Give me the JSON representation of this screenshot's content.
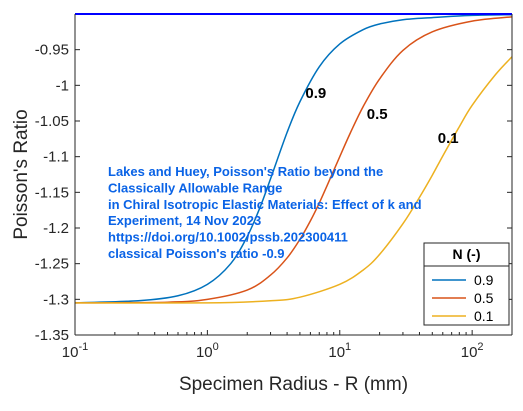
{
  "chart_data": {
    "type": "line",
    "xlabel": "Specimen Radius - R (mm)",
    "ylabel": "Poisson's Ratio",
    "xscale": "log",
    "xlim": [
      0.1,
      200
    ],
    "ylim": [
      -1.35,
      -0.9
    ],
    "grid": false,
    "x_ticks": [
      {
        "value": 0.1,
        "base": "10",
        "exp": "-1"
      },
      {
        "value": 1,
        "base": "10",
        "exp": "0"
      },
      {
        "value": 10,
        "base": "10",
        "exp": "1"
      },
      {
        "value": 100,
        "base": "10",
        "exp": "2"
      }
    ],
    "y_ticks": [
      {
        "value": -0.95,
        "label": "-0.95"
      },
      {
        "value": -1.0,
        "label": "-1"
      },
      {
        "value": -1.05,
        "label": "-1.05"
      },
      {
        "value": -1.1,
        "label": "-1.1"
      },
      {
        "value": -1.15,
        "label": "-1.15"
      },
      {
        "value": -1.2,
        "label": "-1.2"
      },
      {
        "value": -1.25,
        "label": "-1.25"
      },
      {
        "value": -1.3,
        "label": "-1.3"
      },
      {
        "value": -1.35,
        "label": "-1.35"
      }
    ],
    "reference_line": {
      "value": -0.9,
      "color": "#0000ff"
    },
    "legend": {
      "title": "N (-)",
      "placement": "bottom-right"
    },
    "series": [
      {
        "name": "0.9",
        "color": "#0072bd",
        "label": "0.9",
        "label_at": [
          5.5,
          -1.018
        ],
        "x": [
          0.1,
          0.3,
          0.6,
          1.0,
          1.5,
          2.0,
          2.5,
          3.0,
          4.0,
          5.0,
          7.0,
          10,
          15,
          20,
          30,
          50,
          100,
          200
        ],
        "y": [
          -1.305,
          -1.302,
          -1.295,
          -1.279,
          -1.25,
          -1.212,
          -1.171,
          -1.131,
          -1.066,
          -1.023,
          -0.974,
          -0.942,
          -0.922,
          -0.914,
          -0.908,
          -0.905,
          -0.902,
          -0.901
        ]
      },
      {
        "name": "0.5",
        "color": "#d95319",
        "label": "0.5",
        "label_at": [
          16,
          -1.047
        ],
        "x": [
          0.1,
          0.5,
          1.0,
          2.0,
          3.0,
          4.0,
          5.0,
          6.0,
          7.0,
          8.0,
          10,
          12,
          15,
          20,
          30,
          50,
          100,
          200
        ],
        "y": [
          -1.305,
          -1.304,
          -1.3,
          -1.287,
          -1.266,
          -1.242,
          -1.216,
          -1.19,
          -1.165,
          -1.141,
          -1.1,
          -1.067,
          -1.03,
          -0.991,
          -0.951,
          -0.925,
          -0.91,
          -0.904
        ]
      },
      {
        "name": "0.1",
        "color": "#edb120",
        "label": "0.1",
        "label_at": [
          55,
          -1.081
        ],
        "x": [
          0.1,
          1.0,
          3.0,
          5.0,
          10,
          15,
          20,
          30,
          40,
          50,
          60,
          80,
          100,
          150,
          200
        ],
        "y": [
          -1.305,
          -1.305,
          -1.302,
          -1.297,
          -1.279,
          -1.259,
          -1.237,
          -1.194,
          -1.157,
          -1.126,
          -1.099,
          -1.058,
          -1.028,
          -0.985,
          -0.96
        ]
      }
    ],
    "annotation": {
      "color": "#0a63e6",
      "lines": [
        "Lakes and Huey, Poisson's Ratio beyond the",
        "Classically Allowable Range",
        "in Chiral Isotropic Elastic Materials: Effect of k and",
        "Experiment, 14 Nov 2023",
        "https://doi.org/10.1002/pssb.202300411",
        "classical Poisson's ratio -0.9"
      ]
    }
  }
}
